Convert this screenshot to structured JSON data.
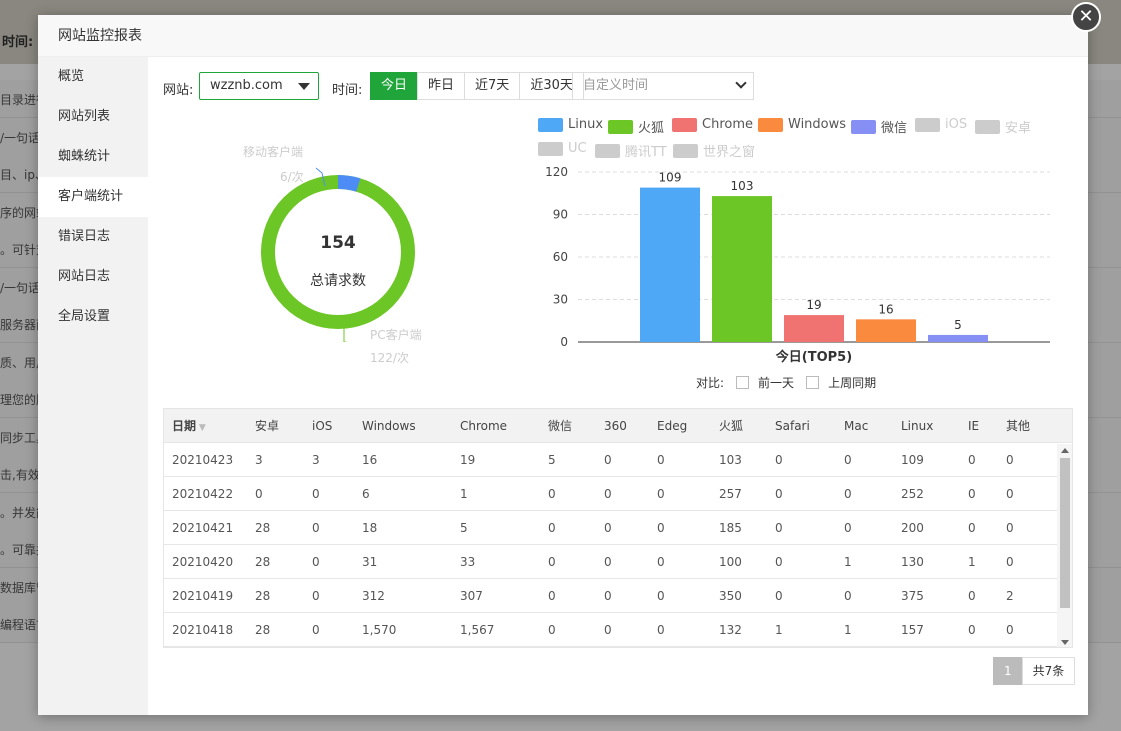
{
  "background": {
    "header_label": "时间:",
    "rows": [
      "目录进行",
      "/一句话",
      "目、ip、",
      "序的网站",
      "。可针对",
      "/一句话",
      "服务器面",
      "质、用户",
      "理您的服",
      "同步工具",
      "击,有效拦",
      "。并发能",
      "。可靠并",
      "数据库管理",
      "编程语言"
    ]
  },
  "modal": {
    "title": "网站监控报表",
    "close_label": "✕"
  },
  "sidebar": {
    "items": [
      {
        "label": "概览"
      },
      {
        "label": "网站列表"
      },
      {
        "label": "蜘蛛统计"
      },
      {
        "label": "客户端统计"
      },
      {
        "label": "错误日志"
      },
      {
        "label": "网站日志"
      },
      {
        "label": "全局设置"
      }
    ],
    "active": "客户端统计"
  },
  "filters": {
    "site_label": "网站:",
    "site_value": "wzznb.com",
    "time_label": "时间:",
    "time_buttons": [
      {
        "label": "今日"
      },
      {
        "label": "昨日"
      },
      {
        "label": "近7天"
      },
      {
        "label": "近30天"
      }
    ],
    "active_time": "今日",
    "custom_placeholder": "自定义时间"
  },
  "donut": {
    "total": "154",
    "total_label": "总请求数",
    "mobile_label": "移动客户端",
    "mobile_value": "6/次",
    "pc_label": "PC客户端",
    "pc_value": "122/次",
    "colors": {
      "pc": "#6cc625",
      "mobile": "#4e8cf5"
    }
  },
  "chart_data": {
    "type": "bar",
    "title": "今日(TOP5)",
    "categories": [
      "Linux",
      "火狐",
      "Chrome",
      "Windows",
      "微信"
    ],
    "values": [
      109,
      103,
      19,
      16,
      5
    ],
    "colors": [
      "#4fa8f5",
      "#6cc625",
      "#f17371",
      "#fa8a3e",
      "#8690f4"
    ],
    "ylim": [
      0,
      120
    ],
    "yticks": [
      0,
      30,
      60,
      90,
      120
    ],
    "legend": [
      {
        "name": "Linux",
        "color": "#4fa8f5",
        "active": true
      },
      {
        "name": "火狐",
        "color": "#6cc625",
        "active": true
      },
      {
        "name": "Chrome",
        "color": "#f17371",
        "active": true
      },
      {
        "name": "Windows",
        "color": "#fa8a3e",
        "active": true
      },
      {
        "name": "微信",
        "color": "#8690f4",
        "active": true
      },
      {
        "name": "iOS",
        "color": "#cccccc",
        "active": false
      },
      {
        "name": "安卓",
        "color": "#cccccc",
        "active": false
      },
      {
        "name": "UC",
        "color": "#cccccc",
        "active": false
      },
      {
        "name": "腾讯TT",
        "color": "#cccccc",
        "active": false
      },
      {
        "name": "世界之窗",
        "color": "#cccccc",
        "active": false
      }
    ],
    "legend_position": "top",
    "grid": true
  },
  "compare": {
    "label": "对比:",
    "prev_day": "前一天",
    "last_week": "上周同期"
  },
  "table": {
    "columns": [
      "日期",
      "安卓",
      "iOS",
      "Windows",
      "Chrome",
      "微信",
      "360",
      "Edeg",
      "火狐",
      "Safari",
      "Mac",
      "Linux",
      "IE",
      "其他"
    ],
    "rows": [
      [
        "20210423",
        "3",
        "3",
        "16",
        "19",
        "5",
        "0",
        "0",
        "103",
        "0",
        "0",
        "109",
        "0",
        "0"
      ],
      [
        "20210422",
        "0",
        "0",
        "6",
        "1",
        "0",
        "0",
        "0",
        "257",
        "0",
        "0",
        "252",
        "0",
        "0"
      ],
      [
        "20210421",
        "28",
        "0",
        "18",
        "5",
        "0",
        "0",
        "0",
        "185",
        "0",
        "0",
        "200",
        "0",
        "0"
      ],
      [
        "20210420",
        "28",
        "0",
        "31",
        "33",
        "0",
        "0",
        "0",
        "100",
        "0",
        "1",
        "130",
        "1",
        "0"
      ],
      [
        "20210419",
        "28",
        "0",
        "312",
        "307",
        "0",
        "0",
        "0",
        "350",
        "0",
        "0",
        "375",
        "0",
        "2"
      ],
      [
        "20210418",
        "28",
        "0",
        "1,570",
        "1,567",
        "0",
        "0",
        "0",
        "132",
        "1",
        "1",
        "157",
        "0",
        "0"
      ]
    ]
  },
  "pager": {
    "current": "1",
    "total": "共7条"
  }
}
